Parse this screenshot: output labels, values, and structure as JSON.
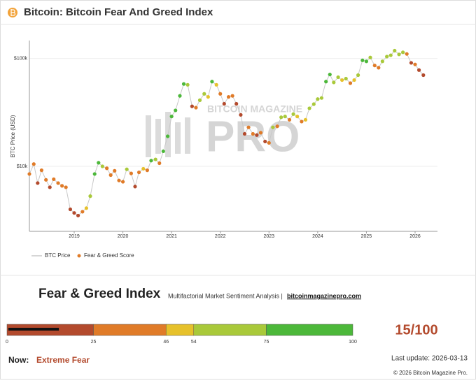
{
  "chart_data": {
    "type": "scatter",
    "title": "Bitcoin: Bitcoin Fear And Greed Index",
    "y_label": "BTC Price (USD)",
    "log_scale": "y",
    "grid": true,
    "legend": "bottom-left",
    "xlim": [
      2018.08,
      2026.46
    ],
    "xticks": [
      2019,
      2020,
      2021,
      2022,
      2023,
      2024,
      2025,
      2026
    ],
    "ylim": [
      2500,
      130000
    ],
    "yticks": [
      {
        "value": 10000,
        "label": "$10k"
      },
      {
        "value": 100000,
        "label": "$100k"
      }
    ],
    "x": [
      2018.08,
      2018.17,
      2018.25,
      2018.33,
      2018.42,
      2018.5,
      2018.58,
      2018.67,
      2018.75,
      2018.83,
      2018.92,
      2019.0,
      2019.08,
      2019.17,
      2019.25,
      2019.33,
      2019.42,
      2019.5,
      2019.58,
      2019.67,
      2019.75,
      2019.83,
      2019.92,
      2020.0,
      2020.08,
      2020.17,
      2020.25,
      2020.33,
      2020.42,
      2020.5,
      2020.58,
      2020.67,
      2020.75,
      2020.83,
      2020.92,
      2021.0,
      2021.08,
      2021.17,
      2021.25,
      2021.33,
      2021.42,
      2021.5,
      2021.58,
      2021.67,
      2021.75,
      2021.83,
      2021.92,
      2022.0,
      2022.08,
      2022.17,
      2022.25,
      2022.33,
      2022.42,
      2022.5,
      2022.58,
      2022.67,
      2022.75,
      2022.83,
      2022.92,
      2023.0,
      2023.08,
      2023.17,
      2023.25,
      2023.33,
      2023.42,
      2023.5,
      2023.58,
      2023.67,
      2023.75,
      2023.83,
      2023.92,
      2024.0,
      2024.08,
      2024.17,
      2024.25,
      2024.33,
      2024.42,
      2024.5,
      2024.58,
      2024.67,
      2024.75,
      2024.83,
      2024.92,
      2025.0,
      2025.08,
      2025.17,
      2025.25,
      2025.33,
      2025.42,
      2025.5,
      2025.58,
      2025.67,
      2025.75,
      2025.83,
      2025.92,
      2026.0,
      2026.08,
      2026.17
    ],
    "series": [
      {
        "name": "BTC Price",
        "color": "#c8c8c8",
        "values": [
          8500,
          10500,
          7000,
          9200,
          7500,
          6400,
          7600,
          7000,
          6600,
          6400,
          4000,
          3700,
          3500,
          3800,
          4100,
          5300,
          8500,
          10800,
          10000,
          9600,
          8300,
          9100,
          7400,
          7200,
          9400,
          8600,
          6500,
          8800,
          9500,
          9200,
          11300,
          11600,
          10700,
          13800,
          19000,
          29000,
          33000,
          45000,
          58000,
          57000,
          36000,
          35000,
          41000,
          47000,
          44000,
          61000,
          57000,
          47000,
          38000,
          44000,
          45000,
          38000,
          30000,
          20000,
          23000,
          20000,
          19500,
          20500,
          17000,
          16500,
          23000,
          23500,
          28500,
          29000,
          27000,
          30500,
          29000,
          26000,
          27000,
          34500,
          37700,
          42000,
          43000,
          61000,
          71000,
          60000,
          67000,
          63000,
          65000,
          59000,
          63000,
          70000,
          96000,
          94000,
          102000,
          86000,
          82000,
          94000,
          104000,
          107000,
          118000,
          109000,
          114000,
          110000,
          91000,
          88000,
          78000,
          70000
        ]
      },
      {
        "name": "Fear & Greed Score",
        "color": "#e07b28",
        "values": [
          40,
          45,
          20,
          40,
          25,
          20,
          40,
          25,
          30,
          30,
          10,
          15,
          20,
          40,
          50,
          60,
          75,
          80,
          60,
          45,
          35,
          45,
          25,
          30,
          55,
          40,
          10,
          45,
          50,
          45,
          75,
          60,
          45,
          75,
          90,
          92,
          80,
          88,
          75,
          65,
          20,
          25,
          55,
          65,
          50,
          75,
          50,
          25,
          20,
          40,
          45,
          20,
          10,
          8,
          25,
          25,
          22,
          30,
          22,
          25,
          55,
          45,
          60,
          55,
          45,
          60,
          50,
          40,
          48,
          68,
          70,
          70,
          65,
          80,
          78,
          60,
          70,
          50,
          55,
          35,
          50,
          70,
          85,
          75,
          70,
          25,
          30,
          55,
          70,
          65,
          72,
          55,
          60,
          45,
          20,
          25,
          15,
          10
        ]
      }
    ]
  },
  "watermark": [
    "BITCOIN MAGAZINE",
    "PRO"
  ],
  "gauge": {
    "title": "Fear & Greed Index",
    "subtitle": "Multifactorial Market Sentiment Analysis |",
    "link": "bitcoinmagazinepro.com",
    "bands": [
      0,
      25,
      46,
      54,
      75,
      100
    ],
    "band_colors": [
      "#b34a2d",
      "#e07b28",
      "#e6c12b",
      "#a9c93a",
      "#4cb83a"
    ],
    "value": 15,
    "max": 100,
    "value_label": "15/100",
    "status_label": "Now:",
    "status": "Extreme Fear",
    "last_update": "Last update: 2026-03-13",
    "copyright": "© 2026 Bitcoin Magazine Pro."
  }
}
